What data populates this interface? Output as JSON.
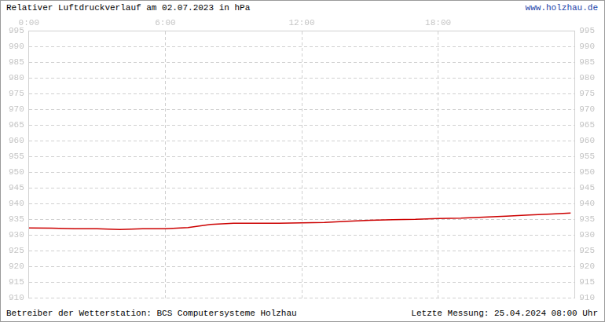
{
  "chart_data": {
    "type": "line",
    "title": "Relativer Luftdruckverlauf am 02.07.2023 in hPa",
    "annotations": [
      "www.holzhau.de",
      "Betreiber der Wetterstation: BCS Computersysteme Holzhau",
      "Letzte Messung: 25.04.2024 08:00 Uhr"
    ],
    "x": [
      0,
      1,
      2,
      3,
      4,
      5,
      6,
      7,
      8,
      9,
      10,
      11,
      12,
      13,
      14,
      15,
      16,
      17,
      18,
      19,
      20,
      21,
      22,
      23,
      23.83
    ],
    "values": [
      932.3,
      932.2,
      932.0,
      932.0,
      931.8,
      932.0,
      932.0,
      932.4,
      933.4,
      933.8,
      933.8,
      933.8,
      933.9,
      934.0,
      934.4,
      934.7,
      934.9,
      935.0,
      935.3,
      935.4,
      935.7,
      936.0,
      936.4,
      936.7,
      937.0
    ],
    "color": "#cc0000",
    "xlim": [
      0,
      24
    ],
    "xticks": [
      {
        "value": 0,
        "label": "0:00"
      },
      {
        "value": 6,
        "label": "6:00"
      },
      {
        "value": 12,
        "label": "12:00"
      },
      {
        "value": 18,
        "label": "18:00"
      }
    ],
    "ylim": [
      910,
      995
    ],
    "yticks": [
      910,
      915,
      920,
      925,
      930,
      935,
      940,
      945,
      950,
      955,
      960,
      965,
      970,
      975,
      980,
      985,
      990,
      995
    ],
    "grid": true
  }
}
